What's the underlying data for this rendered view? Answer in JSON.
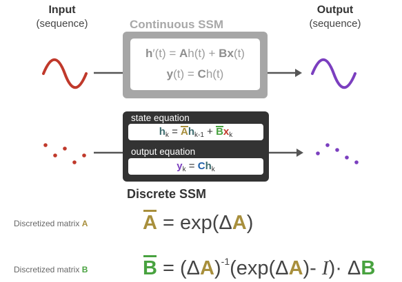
{
  "input": {
    "title": "Input",
    "subtitle": "(sequence)"
  },
  "output": {
    "title": "Output",
    "subtitle": "(sequence)"
  },
  "continuous": {
    "title": "Continuous SSM",
    "eq1": {
      "h": "h",
      "prime": "′(t) = ",
      "A": "A",
      "h2": "h(t) + ",
      "B": "B",
      "x": "x",
      "t": "(t)"
    },
    "eq2": {
      "y": "y",
      "t1": "(t) = ",
      "C": "C",
      "h": "h",
      "t2": "(t)"
    }
  },
  "discrete": {
    "title": "Discrete SSM",
    "state_label": "state equation",
    "output_label": "output equation",
    "state_eq": {
      "h": "h",
      "k": "k",
      "eq": " = ",
      "Abar": "A",
      "h2": "h",
      "km1": "k-1",
      "plus": " + ",
      "Bbar": "B",
      "x": "x",
      "k2": "k"
    },
    "output_eq": {
      "y": "y",
      "k": "k",
      "eq": " = ",
      "C": "C",
      "h": "h",
      "k2": "k"
    }
  },
  "matrix_a": {
    "label_prefix": "Discretized matrix ",
    "label_letter": "A",
    "lhs": "A",
    "rhs_1": " = exp(Δ",
    "rhs_A": "A",
    "rhs_2": ")"
  },
  "matrix_b": {
    "label_prefix": "Discretized matrix ",
    "label_letter": "B",
    "lhs": "B",
    "p1": " = (Δ",
    "A1": "A",
    "p2": ")",
    "exp": "-1",
    "p3": "(exp(Δ",
    "A2": "A",
    "p4": ")- ",
    "I": "I",
    "p5": ")· Δ",
    "B2": "B"
  },
  "colors": {
    "input_signal": "#c0392b",
    "output_signal": "#7b3fbf",
    "arrow": "#555555",
    "matrix_a": "#a88f3c",
    "matrix_b": "#48a23f"
  }
}
